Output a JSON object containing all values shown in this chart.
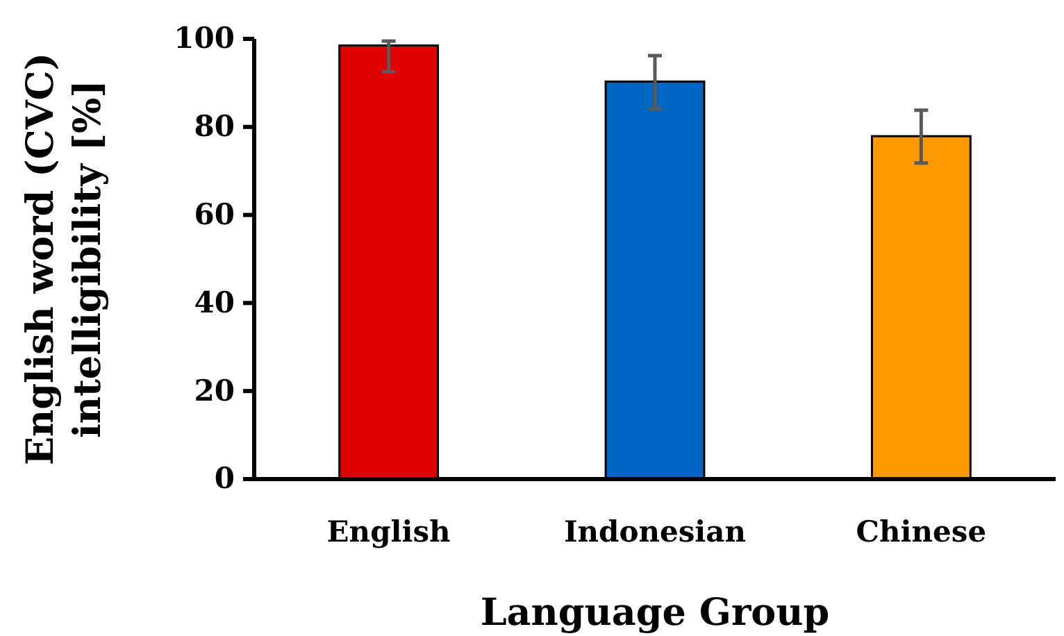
{
  "chart_data": {
    "type": "bar",
    "xlabel": "Language Group",
    "ylabel": "English word (CVC) intelligibility [%]",
    "categories": [
      "English",
      "Indonesian",
      "Chinese"
    ],
    "values": [
      98.5,
      90.3,
      77.9
    ],
    "colors": [
      "#e00000",
      "#0066c4",
      "#ff9900"
    ],
    "errors": [
      [
        92.5,
        99.5
      ],
      [
        84.1,
        96.2
      ],
      [
        71.8,
        83.8
      ]
    ],
    "ylim": [
      0,
      100
    ],
    "yticks": [
      0,
      20,
      40,
      60,
      80,
      100
    ],
    "grid": false
  }
}
